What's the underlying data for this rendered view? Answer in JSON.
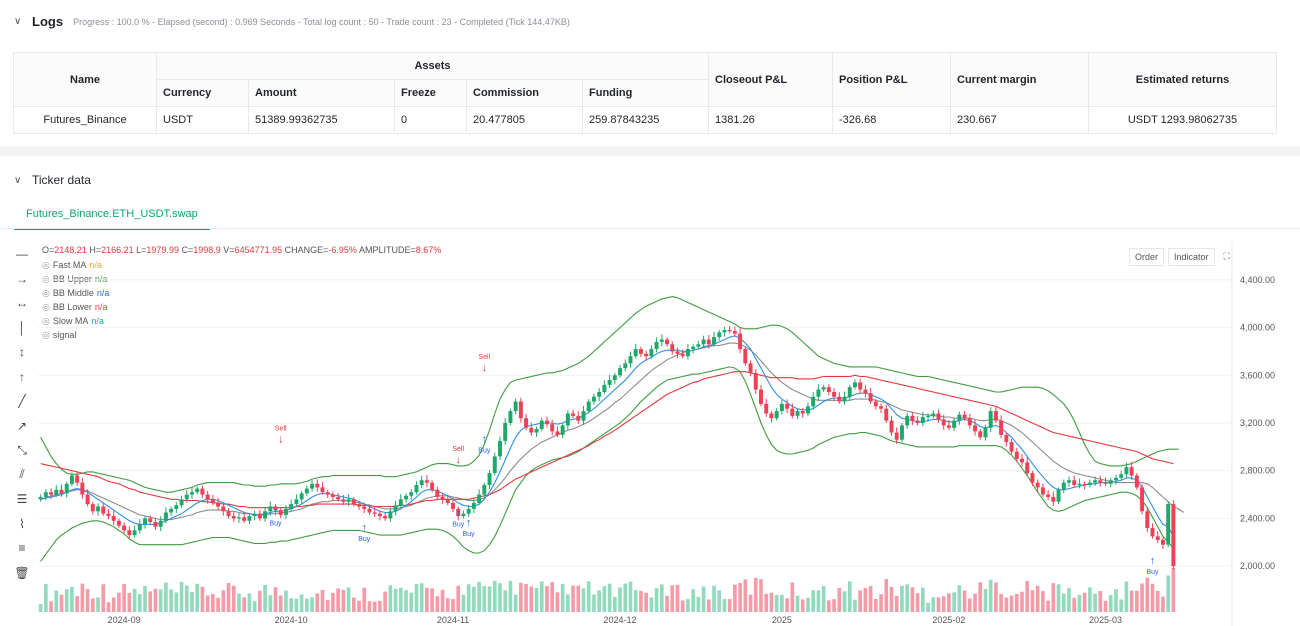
{
  "logs": {
    "title": "Logs",
    "summary": "Progress : 100.0 % - Elapsed (second) : 0.969  Seconds - Total log count : 50 - Trade count : 23 - Completed (Tick 144.47KB)",
    "table": {
      "headers": {
        "name": "Name",
        "assets": "Assets",
        "closeout": "Closeout P&L",
        "position": "Position P&L",
        "margin": "Current margin",
        "returns": "Estimated returns"
      },
      "subheaders": [
        "Currency",
        "Amount",
        "Freeze",
        "Commission",
        "Funding"
      ],
      "row": {
        "name": "Futures_Binance",
        "currency": "USDT",
        "amount": "51389.99362735",
        "freeze": "0",
        "commission": "20.477805",
        "funding": "259.87843235",
        "closeout": "1381.26",
        "position": "-326.68",
        "margin": "230.667",
        "returns": "USDT 1293.98062735"
      }
    }
  },
  "ticker": {
    "title": "Ticker data",
    "tab": "Futures_Binance.ETH_USDT.swap",
    "ohlc": {
      "o_label": "O=",
      "o": "2148.21",
      "h_label": "H=",
      "h": "2166.21",
      "l_label": "L=",
      "l": "1979.99",
      "c_label": "C=",
      "c": "1998.9",
      "v_label": "V=",
      "v": "6454771.95",
      "change_label": "CHANGE=",
      "change": "-6.95%",
      "amp_label": "AMPLITUDE=",
      "amp": "8.67%"
    },
    "legend": [
      {
        "name": "Fast MA",
        "value": "n/a",
        "color": "#f5a623"
      },
      {
        "name": "BB Upper",
        "value": "n/a",
        "color": "#3f9b3f"
      },
      {
        "name": "BB Middle",
        "value": "n/a",
        "color": "#2962ff"
      },
      {
        "name": "BB Lower",
        "value": "n/a",
        "color": "#e0383f"
      },
      {
        "name": "Slow MA",
        "value": "n/a",
        "color": "#26a69a"
      },
      {
        "name": "signal",
        "value": "",
        "color": "#555555"
      }
    ],
    "buttons": {
      "order": "Order",
      "indicator": "Indicator"
    },
    "icons": [
      "horizontal-line-icon",
      "horizontal-ray-icon",
      "range-icon",
      "vertical-line-icon",
      "vertical-segment-icon",
      "vertical-ray-icon",
      "trend-line-icon",
      "ray-icon",
      "extended-line-icon",
      "parallel-channel-icon",
      "fib-icon",
      "pattern-icon",
      "text-icon",
      "trash-icon"
    ]
  },
  "chart_data": {
    "type": "candlestick",
    "symbol": "Futures_Binance.ETH_USDT.swap",
    "x_ticks": [
      "2024-09",
      "2024-10",
      "2024-11",
      "2024-12",
      "2025",
      "2025-02",
      "2025-03"
    ],
    "y_ticks": [
      "2,000.00",
      "2,400.00",
      "2,800.00",
      "3,200.00",
      "3,600.00",
      "4,000.00",
      "4,400.00"
    ],
    "ylim": [
      1800,
      4600
    ],
    "close": [
      2580,
      2620,
      2600,
      2640,
      2610,
      2690,
      2760,
      2700,
      2600,
      2520,
      2460,
      2500,
      2440,
      2420,
      2380,
      2340,
      2300,
      2260,
      2300,
      2350,
      2400,
      2370,
      2330,
      2380,
      2450,
      2480,
      2510,
      2560,
      2600,
      2620,
      2650,
      2600,
      2560,
      2530,
      2500,
      2460,
      2420,
      2400,
      2410,
      2380,
      2420,
      2440,
      2400,
      2460,
      2500,
      2470,
      2430,
      2480,
      2520,
      2560,
      2610,
      2650,
      2690,
      2660,
      2620,
      2600,
      2580,
      2560,
      2540,
      2560,
      2520,
      2500,
      2480,
      2450,
      2440,
      2420,
      2400,
      2460,
      2510,
      2560,
      2590,
      2620,
      2680,
      2720,
      2700,
      2640,
      2580,
      2560,
      2530,
      2480,
      2420,
      2440,
      2480,
      2530,
      2600,
      2680,
      2780,
      2920,
      3050,
      3200,
      3300,
      3380,
      3240,
      3160,
      3120,
      3150,
      3220,
      3190,
      3130,
      3100,
      3180,
      3280,
      3260,
      3220,
      3300,
      3380,
      3420,
      3460,
      3520,
      3560,
      3600,
      3660,
      3700,
      3760,
      3820,
      3780,
      3760,
      3820,
      3880,
      3900,
      3860,
      3800,
      3780,
      3760,
      3820,
      3840,
      3860,
      3900,
      3860,
      3920,
      3960,
      3980,
      3970,
      3950,
      3820,
      3700,
      3620,
      3480,
      3360,
      3280,
      3240,
      3300,
      3360,
      3320,
      3260,
      3300,
      3280,
      3340,
      3420,
      3480,
      3500,
      3460,
      3420,
      3380,
      3420,
      3500,
      3540,
      3480,
      3450,
      3380,
      3340,
      3320,
      3220,
      3120,
      3060,
      3180,
      3260,
      3220,
      3200,
      3250,
      3260,
      3280,
      3230,
      3180,
      3160,
      3220,
      3270,
      3240,
      3180,
      3130,
      3080,
      3160,
      3300,
      3220,
      3100,
      3040,
      2960,
      2900,
      2870,
      2780,
      2700,
      2660,
      2600,
      2580,
      2540,
      2640,
      2700,
      2720,
      2680,
      2690,
      2680,
      2700,
      2720,
      2700,
      2690,
      2720,
      2740,
      2770,
      2830,
      2760,
      2660,
      2460,
      2320,
      2250,
      2220,
      2180,
      2520,
      2000
    ],
    "fast_ma": [
      2560,
      2570,
      2580,
      2590,
      2600,
      2620,
      2640,
      2650,
      2640,
      2620,
      2590,
      2560,
      2530,
      2500,
      2470,
      2440,
      2410,
      2380,
      2360,
      2350,
      2350,
      2350,
      2350,
      2360,
      2380,
      2400,
      2420,
      2440,
      2470,
      2500,
      2530,
      2550,
      2560,
      2560,
      2550,
      2530,
      2510,
      2490,
      2470,
      2450,
      2440,
      2430,
      2430,
      2440,
      2450,
      2460,
      2460,
      2470,
      2480,
      2500,
      2520,
      2550,
      2580,
      2600,
      2610,
      2610,
      2600,
      2590,
      2580,
      2570,
      2560,
      2540,
      2520,
      2500,
      2480,
      2460,
      2450,
      2450,
      2460,
      2480,
      2510,
      2540,
      2580,
      2620,
      2640,
      2640,
      2630,
      2610,
      2590,
      2560,
      2530,
      2510,
      2500,
      2500,
      2520,
      2560,
      2620,
      2700,
      2790,
      2890,
      2990,
      3080,
      3140,
      3170,
      3180,
      3190,
      3200,
      3200,
      3200,
      3190,
      3200,
      3220,
      3230,
      3240,
      3260,
      3290,
      3320,
      3360,
      3400,
      3440,
      3480,
      3520,
      3560,
      3610,
      3660,
      3700,
      3730,
      3750,
      3780,
      3800,
      3810,
      3810,
      3810,
      3800,
      3800,
      3810,
      3820,
      3840,
      3850,
      3860,
      3880,
      3900,
      3920,
      3930,
      3910,
      3870,
      3820,
      3740,
      3660,
      3580,
      3500,
      3440,
      3400,
      3370,
      3340,
      3320,
      3310,
      3310,
      3320,
      3350,
      3380,
      3400,
      3410,
      3410,
      3410,
      3420,
      3440,
      3450,
      3450,
      3440,
      3420,
      3400,
      3370,
      3320,
      3270,
      3240,
      3230,
      3220,
      3210,
      3210,
      3220,
      3230,
      3230,
      3220,
      3210,
      3210,
      3220,
      3230,
      3220,
      3200,
      3170,
      3160,
      3170,
      3180,
      3160,
      3120,
      3080,
      3030,
      2980,
      2920,
      2860,
      2800,
      2750,
      2700,
      2660,
      2640,
      2640,
      2650,
      2660,
      2670,
      2680,
      2690,
      2690,
      2700,
      2700,
      2700,
      2710,
      2720,
      2740,
      2740,
      2720,
      2660,
      2580,
      2500,
      2420,
      2350,
      2330,
      2250
    ],
    "slow_ma": [
      2860,
      2850,
      2840,
      2830,
      2820,
      2810,
      2800,
      2790,
      2780,
      2770,
      2760,
      2750,
      2730,
      2710,
      2700,
      2690,
      2670,
      2650,
      2640,
      2620,
      2610,
      2600,
      2590,
      2580,
      2570,
      2560,
      2560,
      2550,
      2550,
      2550,
      2550,
      2540,
      2540,
      2530,
      2530,
      2520,
      2520,
      2510,
      2500,
      2500,
      2490,
      2490,
      2490,
      2490,
      2490,
      2490,
      2490,
      2490,
      2490,
      2500,
      2500,
      2510,
      2510,
      2520,
      2520,
      2520,
      2520,
      2520,
      2520,
      2520,
      2520,
      2510,
      2510,
      2510,
      2500,
      2500,
      2500,
      2500,
      2500,
      2510,
      2510,
      2520,
      2530,
      2540,
      2550,
      2550,
      2560,
      2560,
      2560,
      2560,
      2560,
      2560,
      2560,
      2570,
      2580,
      2590,
      2600,
      2620,
      2640,
      2670,
      2700,
      2730,
      2750,
      2770,
      2790,
      2810,
      2830,
      2850,
      2870,
      2890,
      2910,
      2930,
      2950,
      2970,
      2990,
      3010,
      3040,
      3060,
      3090,
      3110,
      3140,
      3170,
      3200,
      3230,
      3260,
      3290,
      3320,
      3350,
      3380,
      3410,
      3440,
      3460,
      3480,
      3500,
      3520,
      3540,
      3550,
      3570,
      3580,
      3590,
      3600,
      3610,
      3620,
      3630,
      3630,
      3630,
      3620,
      3610,
      3600,
      3590,
      3580,
      3580,
      3580,
      3580,
      3580,
      3570,
      3570,
      3570,
      3570,
      3580,
      3590,
      3590,
      3590,
      3590,
      3590,
      3590,
      3600,
      3590,
      3590,
      3580,
      3570,
      3560,
      3550,
      3540,
      3530,
      3520,
      3510,
      3500,
      3490,
      3480,
      3470,
      3460,
      3450,
      3440,
      3430,
      3420,
      3410,
      3400,
      3390,
      3380,
      3370,
      3360,
      3350,
      3340,
      3320,
      3300,
      3280,
      3260,
      3240,
      3220,
      3200,
      3180,
      3160,
      3140,
      3120,
      3110,
      3100,
      3090,
      3080,
      3070,
      3060,
      3050,
      3040,
      3030,
      3020,
      3010,
      3000,
      2990,
      2980,
      2970,
      2960,
      2940,
      2920,
      2900,
      2890,
      2880,
      2870,
      2860
    ],
    "bb_mid": [
      2560,
      2575,
      2590,
      2600,
      2610,
      2620,
      2630,
      2640,
      2640,
      2630,
      2610,
      2590,
      2570,
      2550,
      2530,
      2510,
      2490,
      2470,
      2450,
      2430,
      2420,
      2410,
      2400,
      2390,
      2390,
      2390,
      2400,
      2410,
      2420,
      2430,
      2450,
      2460,
      2470,
      2470,
      2470,
      2470,
      2460,
      2460,
      2450,
      2440,
      2440,
      2430,
      2430,
      2430,
      2440,
      2440,
      2450,
      2450,
      2460,
      2470,
      2480,
      2500,
      2520,
      2530,
      2540,
      2540,
      2550,
      2550,
      2550,
      2550,
      2540,
      2530,
      2520,
      2510,
      2500,
      2490,
      2480,
      2480,
      2480,
      2490,
      2500,
      2510,
      2530,
      2550,
      2570,
      2580,
      2590,
      2590,
      2590,
      2580,
      2570,
      2560,
      2550,
      2550,
      2560,
      2570,
      2600,
      2640,
      2690,
      2740,
      2800,
      2850,
      2900,
      2940,
      2980,
      3010,
      3040,
      3060,
      3080,
      3100,
      3120,
      3140,
      3150,
      3170,
      3190,
      3210,
      3240,
      3270,
      3300,
      3330,
      3370,
      3400,
      3440,
      3480,
      3520,
      3560,
      3600,
      3640,
      3670,
      3700,
      3730,
      3750,
      3770,
      3790,
      3800,
      3810,
      3820,
      3830,
      3840,
      3850,
      3850,
      3860,
      3870,
      3870,
      3860,
      3840,
      3810,
      3770,
      3720,
      3670,
      3620,
      3580,
      3540,
      3510,
      3480,
      3460,
      3440,
      3420,
      3400,
      3390,
      3390,
      3390,
      3390,
      3390,
      3390,
      3390,
      3400,
      3400,
      3400,
      3400,
      3390,
      3380,
      3370,
      3350,
      3330,
      3310,
      3300,
      3290,
      3280,
      3270,
      3270,
      3260,
      3260,
      3250,
      3250,
      3240,
      3240,
      3240,
      3240,
      3230,
      3220,
      3220,
      3230,
      3230,
      3220,
      3200,
      3180,
      3150,
      3120,
      3080,
      3040,
      3000,
      2960,
      2920,
      2880,
      2850,
      2820,
      2800,
      2780,
      2770,
      2760,
      2750,
      2740,
      2730,
      2720,
      2710,
      2700,
      2700,
      2700,
      2700,
      2700,
      2700,
      2690,
      2660,
      2620,
      2580,
      2540,
      2500,
      2480,
      2450
    ],
    "bb_up": [
      3080,
      3000,
      2920,
      2860,
      2810,
      2780,
      2770,
      2770,
      2780,
      2790,
      2790,
      2780,
      2770,
      2760,
      2750,
      2740,
      2730,
      2720,
      2700,
      2680,
      2660,
      2650,
      2640,
      2630,
      2620,
      2620,
      2630,
      2640,
      2650,
      2660,
      2680,
      2690,
      2700,
      2700,
      2700,
      2700,
      2700,
      2700,
      2690,
      2680,
      2680,
      2670,
      2670,
      2670,
      2680,
      2680,
      2690,
      2690,
      2690,
      2690,
      2700,
      2710,
      2730,
      2740,
      2750,
      2750,
      2760,
      2760,
      2760,
      2760,
      2760,
      2760,
      2760,
      2760,
      2760,
      2760,
      2750,
      2750,
      2750,
      2760,
      2770,
      2780,
      2790,
      2810,
      2830,
      2850,
      2860,
      2860,
      2860,
      2850,
      2840,
      2840,
      2850,
      2880,
      2930,
      3020,
      3140,
      3280,
      3400,
      3480,
      3540,
      3560,
      3570,
      3580,
      3590,
      3600,
      3610,
      3620,
      3620,
      3630,
      3640,
      3660,
      3680,
      3700,
      3730,
      3760,
      3800,
      3840,
      3880,
      3920,
      3960,
      4000,
      4040,
      4080,
      4120,
      4150,
      4180,
      4200,
      4220,
      4240,
      4250,
      4260,
      4250,
      4230,
      4210,
      4190,
      4170,
      4150,
      4130,
      4110,
      4090,
      4070,
      4050,
      4030,
      4000,
      3990,
      3990,
      3990,
      4000,
      4010,
      4020,
      4020,
      4010,
      3990,
      3960,
      3920,
      3880,
      3840,
      3800,
      3760,
      3740,
      3720,
      3700,
      3690,
      3680,
      3670,
      3670,
      3670,
      3670,
      3670,
      3670,
      3660,
      3650,
      3640,
      3630,
      3620,
      3610,
      3600,
      3590,
      3590,
      3590,
      3580,
      3570,
      3560,
      3550,
      3540,
      3530,
      3520,
      3510,
      3500,
      3490,
      3480,
      3470,
      3460,
      3460,
      3470,
      3480,
      3490,
      3500,
      3500,
      3500,
      3500,
      3490,
      3470,
      3440,
      3400,
      3360,
      3300,
      3220,
      3120,
      3020,
      2940,
      2880,
      2860,
      2850,
      2840,
      2840,
      2840,
      2850,
      2860,
      2880,
      2900,
      2920,
      2940,
      2960,
      2970,
      2980,
      2980,
      2980
    ],
    "bb_low": [
      2040,
      2100,
      2160,
      2220,
      2260,
      2290,
      2320,
      2340,
      2360,
      2370,
      2380,
      2380,
      2370,
      2350,
      2330,
      2300,
      2270,
      2230,
      2200,
      2180,
      2180,
      2180,
      2180,
      2180,
      2180,
      2180,
      2180,
      2180,
      2190,
      2200,
      2210,
      2220,
      2230,
      2240,
      2240,
      2240,
      2240,
      2230,
      2220,
      2210,
      2200,
      2190,
      2190,
      2190,
      2200,
      2200,
      2210,
      2210,
      2220,
      2230,
      2240,
      2250,
      2260,
      2270,
      2280,
      2290,
      2300,
      2300,
      2300,
      2300,
      2300,
      2300,
      2290,
      2280,
      2270,
      2260,
      2260,
      2260,
      2260,
      2260,
      2270,
      2280,
      2290,
      2300,
      2310,
      2310,
      2310,
      2300,
      2280,
      2250,
      2210,
      2160,
      2130,
      2110,
      2110,
      2130,
      2180,
      2250,
      2340,
      2440,
      2540,
      2640,
      2700,
      2760,
      2800,
      2830,
      2850,
      2870,
      2890,
      2900,
      2910,
      2920,
      2940,
      2960,
      2990,
      3020,
      3050,
      3080,
      3110,
      3140,
      3170,
      3200,
      3240,
      3280,
      3330,
      3380,
      3420,
      3460,
      3500,
      3530,
      3560,
      3570,
      3580,
      3590,
      3600,
      3610,
      3610,
      3620,
      3630,
      3640,
      3650,
      3660,
      3670,
      3660,
      3630,
      3550,
      3440,
      3320,
      3200,
      3100,
      3020,
      2970,
      2950,
      2940,
      2940,
      2950,
      2960,
      2970,
      2990,
      3020,
      3040,
      3060,
      3080,
      3090,
      3100,
      3110,
      3110,
      3120,
      3120,
      3110,
      3100,
      3090,
      3070,
      3050,
      3040,
      3030,
      3020,
      3010,
      3000,
      3000,
      3000,
      3000,
      3000,
      3000,
      3000,
      3000,
      3010,
      3010,
      3010,
      3010,
      3010,
      3010,
      3010,
      3010,
      3000,
      2970,
      2930,
      2880,
      2820,
      2760,
      2690,
      2620,
      2560,
      2500,
      2470,
      2460,
      2470,
      2490,
      2510,
      2530,
      2550,
      2560,
      2570,
      2580,
      2590,
      2600,
      2610,
      2620,
      2620,
      2610,
      2590,
      2550,
      2490,
      2410,
      2330,
      2250,
      2200,
      2150
    ],
    "signals": [
      {
        "label": "Buy",
        "type": "buy",
        "i": 45,
        "price": 2510
      },
      {
        "label": "Buy",
        "type": "buy",
        "i": 62,
        "price": 2380
      },
      {
        "label": "Sell",
        "type": "sell",
        "i": 46,
        "price": 3020
      },
      {
        "label": "Buy",
        "type": "buy",
        "i": 80,
        "price": 2500
      },
      {
        "label": "Sell",
        "type": "sell",
        "i": 80,
        "price": 2850
      },
      {
        "label": "Buy",
        "type": "buy",
        "i": 82,
        "price": 2420
      },
      {
        "label": "Sell",
        "type": "sell",
        "i": 85,
        "price": 3620
      },
      {
        "label": "Buy",
        "type": "buy",
        "i": 85,
        "price": 3120
      },
      {
        "label": "Buy",
        "type": "buy",
        "i": 213,
        "price": 2100
      }
    ]
  }
}
